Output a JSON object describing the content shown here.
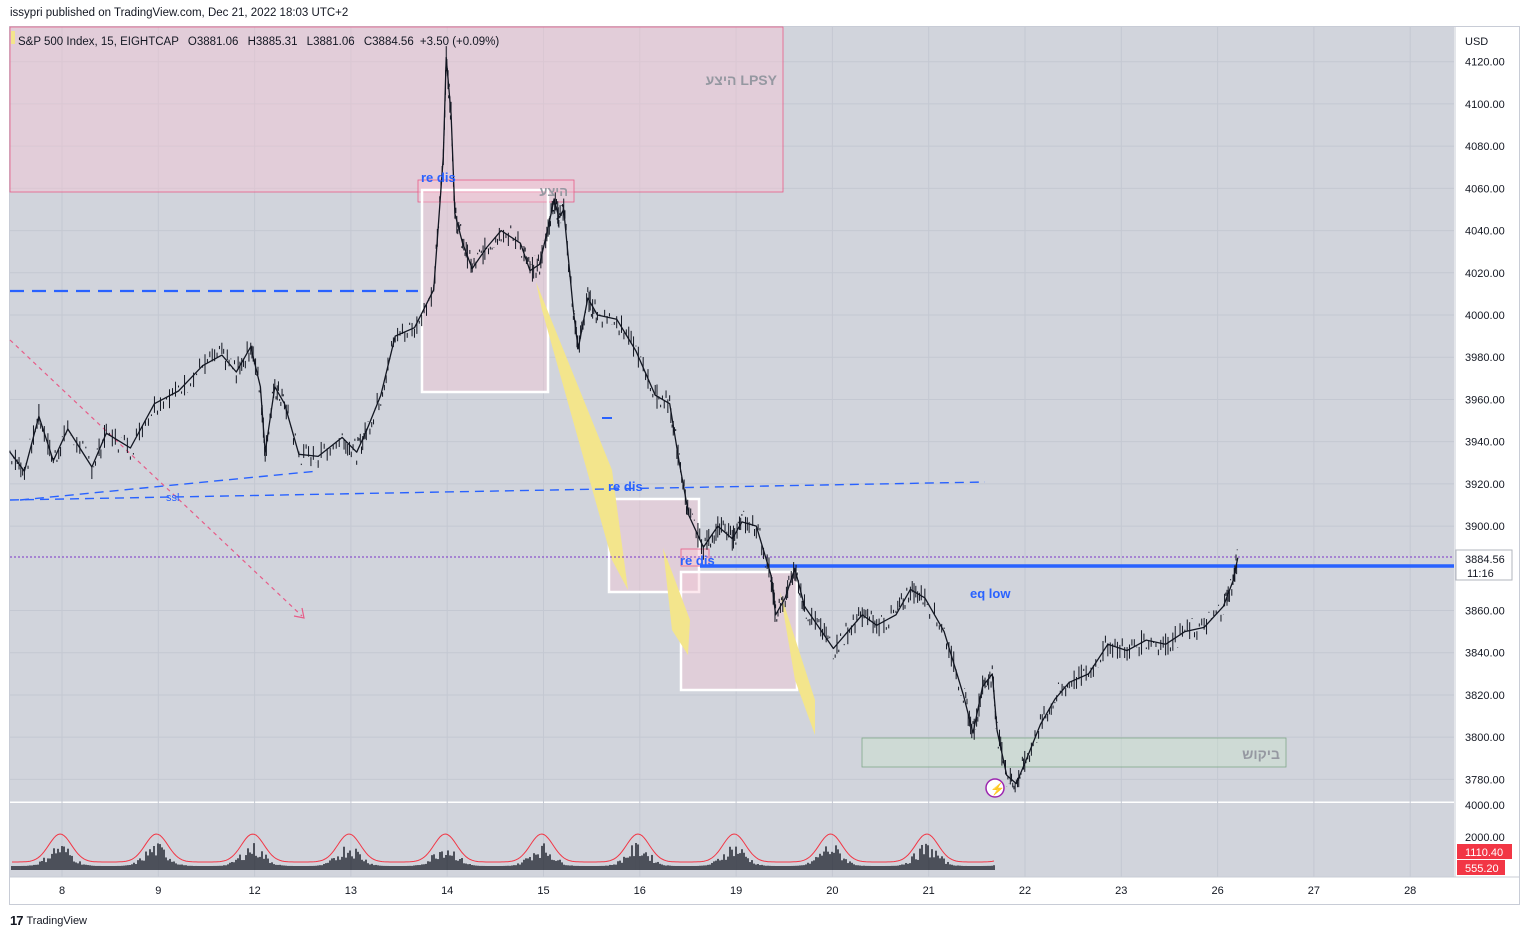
{
  "header": {
    "published_text": "issypri published on TradingView.com, Dec 21, 2022 18:03 UTC+2"
  },
  "footer": {
    "logo_mark": "17",
    "logo_text": "TradingView"
  },
  "colors": {
    "plot_bg": "#d1d4dc",
    "price_line": "#131722",
    "blue_line": "#2962ff",
    "red_dash": "#e75c88",
    "zone_pink": "#f7c6d4",
    "zone_green": "#c8e6c9",
    "yellow_fill": "#f3e58c",
    "white_box": "#ffffff",
    "last_price_bg": "#ffffff",
    "volume_label_bg": "#f23645",
    "accent_purple": "#9c27b0"
  },
  "chart_data": {
    "type": "line",
    "symbol_info": {
      "name": "S&P 500 Index, 15, EIGHTCAP",
      "open": "O3881.06",
      "high": "H3885.31",
      "low": "L3881.06",
      "close": "C3884.56",
      "change": "+3.50 (+0.09%)"
    },
    "currency_label": "USD",
    "y_ticks": [
      "4120.00",
      "4100.00",
      "4080.00",
      "4060.00",
      "4040.00",
      "4020.00",
      "4000.00",
      "3980.00",
      "3960.00",
      "3940.00",
      "3920.00",
      "3900.00",
      "3860.00",
      "3840.00",
      "3820.00",
      "3800.00",
      "3780.00"
    ],
    "ylim": [
      3772,
      4128
    ],
    "x_ticks": [
      "8",
      "9",
      "12",
      "13",
      "14",
      "15",
      "16",
      "19",
      "20",
      "21",
      "22",
      "23",
      "26",
      "27",
      "28"
    ],
    "last_price": "3884.56",
    "countdown": "11:16",
    "volume_ticks": [
      "4000.00",
      "2000.00"
    ],
    "volume_labels": [
      "1110.40",
      "555.20"
    ],
    "series": [
      {
        "values": [
          [
            0,
            3935
          ],
          [
            0.15,
            3926
          ],
          [
            0.3,
            3952
          ],
          [
            0.45,
            3931
          ],
          [
            0.6,
            3946
          ],
          [
            0.85,
            3928
          ],
          [
            1.0,
            3944
          ],
          [
            1.25,
            3937
          ],
          [
            1.5,
            3958
          ],
          [
            1.75,
            3964
          ],
          [
            2.0,
            3976
          ],
          [
            2.2,
            3981
          ],
          [
            2.35,
            3973
          ],
          [
            2.5,
            3985
          ],
          [
            2.6,
            3966
          ],
          [
            2.65,
            3935
          ],
          [
            2.75,
            3966
          ],
          [
            2.85,
            3958
          ],
          [
            3.0,
            3934
          ],
          [
            3.2,
            3933
          ],
          [
            3.45,
            3942
          ],
          [
            3.6,
            3935
          ],
          [
            3.7,
            3945
          ],
          [
            3.85,
            3962
          ],
          [
            4.0,
            3990
          ],
          [
            4.2,
            3994
          ],
          [
            4.4,
            4012
          ],
          [
            4.5,
            4075
          ],
          [
            4.53,
            4122
          ],
          [
            4.58,
            4095
          ],
          [
            4.62,
            4048
          ],
          [
            4.7,
            4034
          ],
          [
            4.8,
            4022
          ],
          [
            4.95,
            4032
          ],
          [
            5.1,
            4040
          ],
          [
            5.3,
            4034
          ],
          [
            5.4,
            4021
          ],
          [
            5.5,
            4024
          ],
          [
            5.6,
            4044
          ],
          [
            5.65,
            4055
          ],
          [
            5.7,
            4046
          ],
          [
            5.75,
            4050
          ],
          [
            5.85,
            4002
          ],
          [
            5.9,
            3984
          ],
          [
            6.0,
            4008
          ],
          [
            6.1,
            4000
          ],
          [
            6.3,
            3998
          ],
          [
            6.5,
            3983
          ],
          [
            6.7,
            3962
          ],
          [
            6.85,
            3958
          ],
          [
            6.95,
            3930
          ],
          [
            7.05,
            3905
          ],
          [
            7.2,
            3890
          ],
          [
            7.35,
            3900
          ],
          [
            7.5,
            3894
          ],
          [
            7.6,
            3902
          ],
          [
            7.75,
            3900
          ],
          [
            7.9,
            3877
          ],
          [
            7.95,
            3858
          ],
          [
            8.05,
            3866
          ],
          [
            8.15,
            3880
          ],
          [
            8.25,
            3862
          ],
          [
            8.4,
            3852
          ],
          [
            8.55,
            3842
          ],
          [
            8.7,
            3850
          ],
          [
            8.85,
            3858
          ],
          [
            9.0,
            3853
          ],
          [
            9.2,
            3858
          ],
          [
            9.35,
            3870
          ],
          [
            9.5,
            3866
          ],
          [
            9.7,
            3850
          ],
          [
            9.9,
            3820
          ],
          [
            10.0,
            3802
          ],
          [
            10.1,
            3824
          ],
          [
            10.2,
            3830
          ],
          [
            10.25,
            3803
          ],
          [
            10.35,
            3782
          ],
          [
            10.45,
            3778
          ],
          [
            10.55,
            3789
          ],
          [
            10.7,
            3806
          ],
          [
            10.85,
            3818
          ],
          [
            11.0,
            3826
          ],
          [
            11.2,
            3830
          ],
          [
            11.4,
            3844
          ],
          [
            11.6,
            3841
          ],
          [
            11.8,
            3846
          ],
          [
            12.0,
            3844
          ],
          [
            12.2,
            3850
          ],
          [
            12.4,
            3852
          ],
          [
            12.6,
            3862
          ],
          [
            12.7,
            3874
          ],
          [
            12.75,
            3885
          ]
        ]
      }
    ],
    "annotations": [
      {
        "text": "היצע LPSY",
        "kind": "supply-zone"
      },
      {
        "text": "היצע",
        "kind": "supply-zone-small"
      },
      {
        "text": "re dis"
      },
      {
        "text": "re dis"
      },
      {
        "text": "re dis"
      },
      {
        "text": "ssl"
      },
      {
        "text": "eq low"
      },
      {
        "text": "ביקוש",
        "kind": "demand-zone"
      }
    ]
  }
}
